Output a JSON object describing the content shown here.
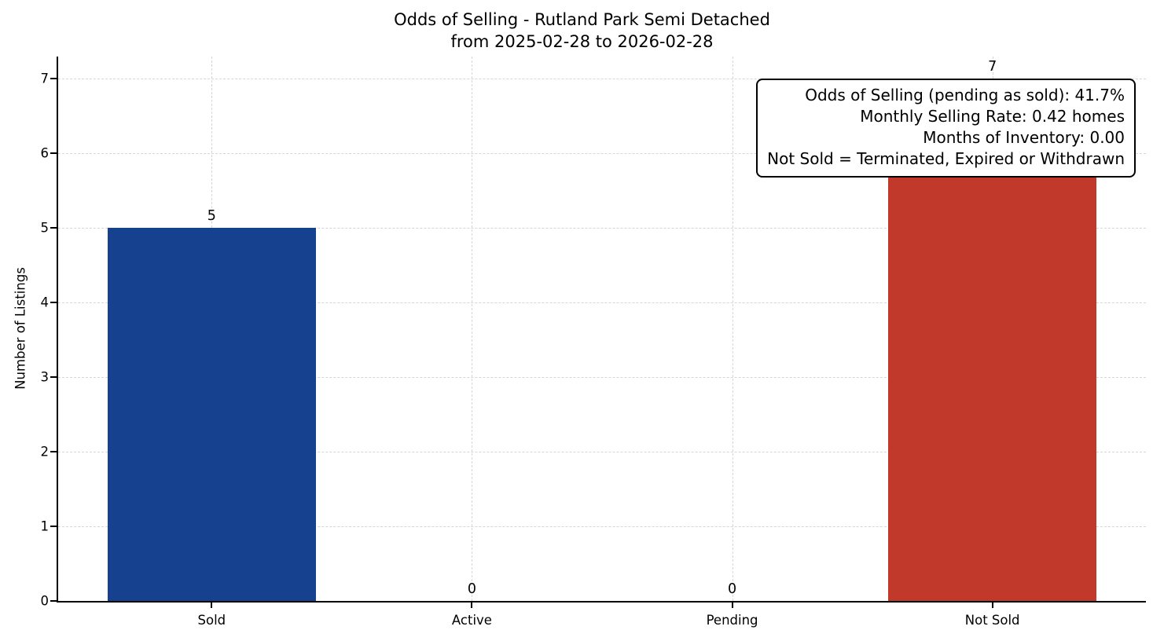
{
  "chart_data": {
    "type": "bar",
    "title": "Odds of Selling - Rutland Park Semi Detached",
    "subtitle": "from 2025-02-28 to 2026-02-28",
    "categories": [
      "Sold",
      "Active",
      "Pending",
      "Not Sold"
    ],
    "values": [
      5,
      0,
      0,
      7
    ],
    "bar_colors": [
      "#15418F",
      null,
      null,
      "#C0392B"
    ],
    "xlabel": "",
    "ylabel": "Number of Listings",
    "ylim": [
      0,
      7.3
    ],
    "xlim": [
      -0.59,
      3.59
    ],
    "yticks": [
      0,
      1,
      2,
      3,
      4,
      5,
      6,
      7
    ],
    "bar_width_units": 0.8,
    "grid": true,
    "legend": "none",
    "annotation": {
      "lines": [
        "Odds of Selling (pending as sold): 41.7%",
        "Monthly Selling Rate: 0.42 homes",
        "Months of Inventory: 0.00",
        "Not Sold = Terminated, Expired or Withdrawn"
      ]
    }
  }
}
